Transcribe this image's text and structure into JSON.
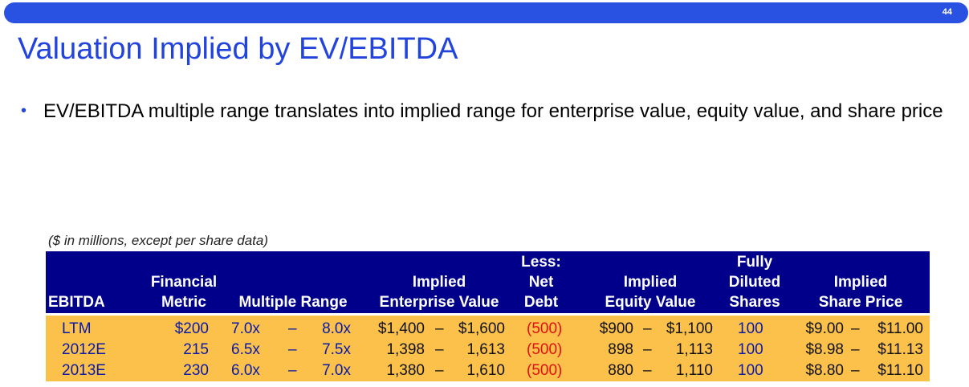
{
  "page_number": "44",
  "title": "Valuation Implied by EV/EBITDA",
  "bullet_text": "EV/EBITDA multiple range translates into implied range for enterprise value, equity value, and share price",
  "table": {
    "note": "($ in millions, except per share data)",
    "headers": {
      "ebitda": "EBITDA",
      "financial": "Financial",
      "metric": "Metric",
      "multiple_range": "Multiple Range",
      "implied_ev_1": "Implied",
      "implied_ev_2": "Enterprise Value",
      "less": "Less:",
      "net": "Net",
      "debt": "Debt",
      "implied_eq_1": "Implied",
      "implied_eq_2": "Equity Value",
      "fully": "Fully",
      "diluted": "Diluted",
      "shares": "Shares",
      "implied_sp_1": "Implied",
      "implied_sp_2": "Share Price"
    },
    "dash": "–",
    "rows": [
      {
        "label": "LTM",
        "metric": "$200",
        "mult_low": "7.0x",
        "mult_high": "8.0x",
        "ev_low": "$1,400",
        "ev_high": "$1,600",
        "net_debt": "(500)",
        "eq_low": "$900",
        "eq_high": "$1,100",
        "shares": "100",
        "sp_low": "$9.00",
        "sp_high": "$11.00"
      },
      {
        "label": "2012E",
        "metric": "215",
        "mult_low": "6.5x",
        "mult_high": "7.5x",
        "ev_low": "1,398",
        "ev_high": "1,613",
        "net_debt": "(500)",
        "eq_low": "898",
        "eq_high": "1,113",
        "shares": "100",
        "sp_low": "$8.98",
        "sp_high": "$11.13"
      },
      {
        "label": "2013E",
        "metric": "230",
        "mult_low": "6.0x",
        "mult_high": "7.0x",
        "ev_low": "1,380",
        "ev_high": "1,610",
        "net_debt": "(500)",
        "eq_low": "880",
        "eq_high": "1,110",
        "shares": "100",
        "sp_low": "$8.80",
        "sp_high": "$11.10"
      }
    ]
  },
  "colors": {
    "accent_blue": "#2a52e2",
    "header_navy": "#00008b",
    "body_gold": "#fbc14a",
    "negative_red": "#e01010"
  }
}
